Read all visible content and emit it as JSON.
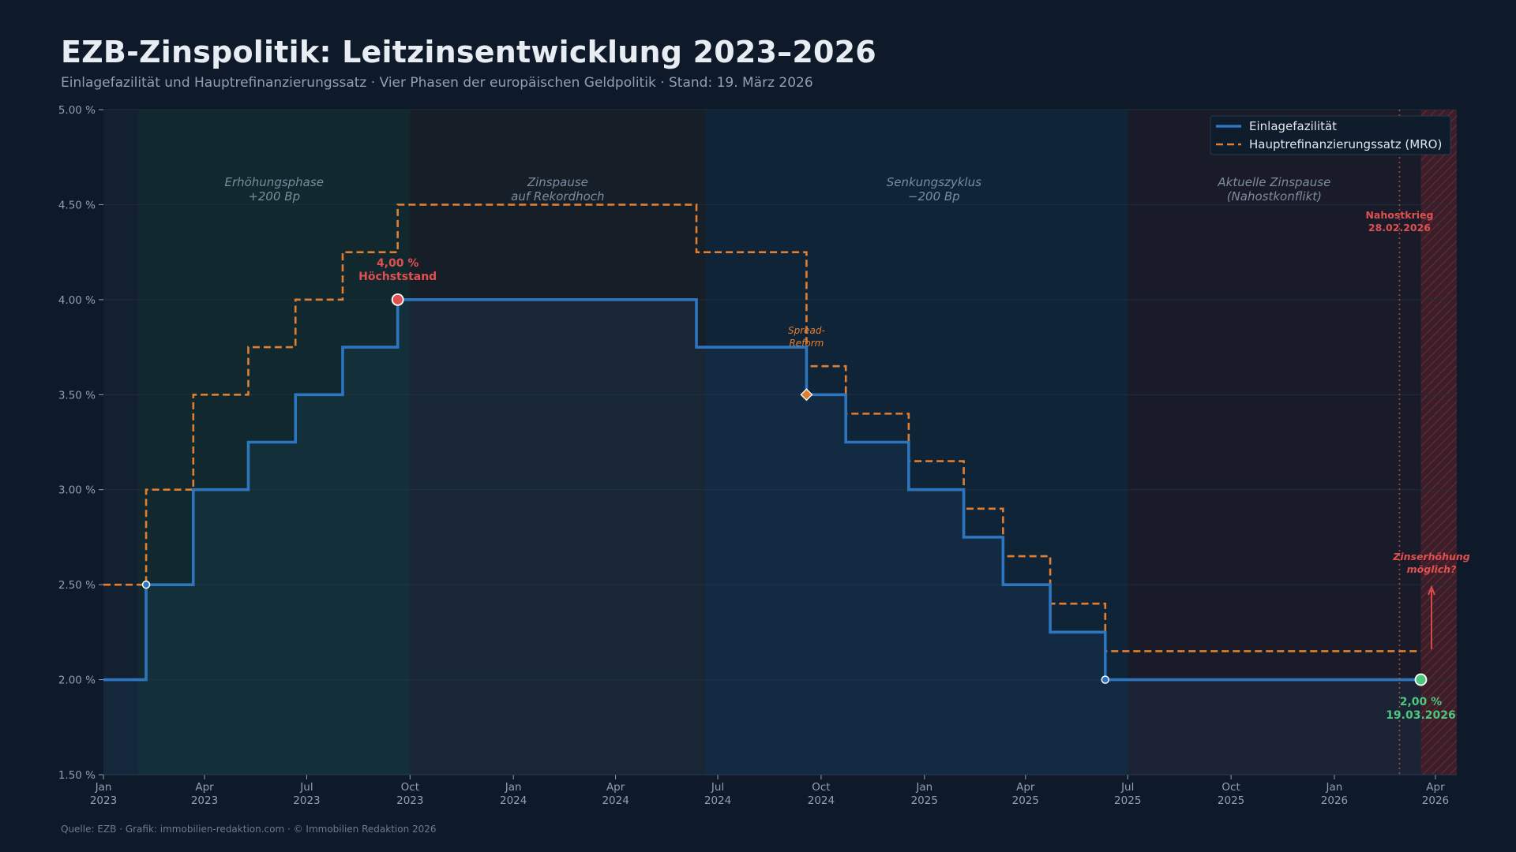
{
  "header": {
    "title": "EZB-Zinspolitik: Leitzinsentwicklung 2023–2026",
    "subtitle": "Einlagefazilität und Hauptrefinanzierungssatz  ·  Vier Phasen der europäischen Geldpolitik  ·  Stand: 19. März 2026"
  },
  "footer": {
    "source": "Quelle: EZB  ·  Grafik: immobilien-redaktion.com  ·  © Immobilien Redaktion 2026"
  },
  "colors": {
    "background": "#0e1a2a",
    "plot_bg": "#13202f",
    "deposit": "#2e75c0",
    "mro": "#e07f33",
    "red": "#e05050",
    "green": "#4cc77e",
    "phase1": "#11292e",
    "phase2": "#161e28",
    "phase3": "#102438",
    "phase4": "#1a1b28"
  },
  "chart_data": {
    "type": "line",
    "step": "post",
    "xlim": [
      "2023-01-01",
      "2026-04-20"
    ],
    "ylim": [
      1.5,
      5.0
    ],
    "y_ticks": [
      {
        "value": 1.5,
        "label": "1.50 %"
      },
      {
        "value": 2.0,
        "label": "2.00 %"
      },
      {
        "value": 2.5,
        "label": "2.50 %"
      },
      {
        "value": 3.0,
        "label": "3.00 %"
      },
      {
        "value": 3.5,
        "label": "3.50 %"
      },
      {
        "value": 4.0,
        "label": "4.00 %"
      },
      {
        "value": 4.5,
        "label": "4.50 %"
      },
      {
        "value": 5.0,
        "label": "5.00 %"
      }
    ],
    "x_ticks": [
      {
        "date": "2023-01-01",
        "month": "Jan",
        "year": "2023"
      },
      {
        "date": "2023-04-01",
        "month": "Apr",
        "year": "2023"
      },
      {
        "date": "2023-07-01",
        "month": "Jul",
        "year": "2023"
      },
      {
        "date": "2023-10-01",
        "month": "Oct",
        "year": "2023"
      },
      {
        "date": "2024-01-01",
        "month": "Jan",
        "year": "2024"
      },
      {
        "date": "2024-04-01",
        "month": "Apr",
        "year": "2024"
      },
      {
        "date": "2024-07-01",
        "month": "Jul",
        "year": "2024"
      },
      {
        "date": "2024-10-01",
        "month": "Oct",
        "year": "2024"
      },
      {
        "date": "2025-01-01",
        "month": "Jan",
        "year": "2025"
      },
      {
        "date": "2025-04-01",
        "month": "Apr",
        "year": "2025"
      },
      {
        "date": "2025-07-01",
        "month": "Jul",
        "year": "2025"
      },
      {
        "date": "2025-10-01",
        "month": "Oct",
        "year": "2025"
      },
      {
        "date": "2026-01-01",
        "month": "Jan",
        "year": "2026"
      },
      {
        "date": "2026-04-01",
        "month": "Apr",
        "year": "2026"
      }
    ],
    "series": [
      {
        "name": "Einlagefazilität",
        "style": "solid",
        "points": [
          {
            "date": "2023-01-01",
            "value": 2.0
          },
          {
            "date": "2023-02-08",
            "value": 2.5
          },
          {
            "date": "2023-03-22",
            "value": 3.0
          },
          {
            "date": "2023-05-10",
            "value": 3.25
          },
          {
            "date": "2023-06-21",
            "value": 3.5
          },
          {
            "date": "2023-08-02",
            "value": 3.75
          },
          {
            "date": "2023-09-20",
            "value": 4.0
          },
          {
            "date": "2024-06-12",
            "value": 3.75
          },
          {
            "date": "2024-09-18",
            "value": 3.5
          },
          {
            "date": "2024-10-23",
            "value": 3.25
          },
          {
            "date": "2024-12-18",
            "value": 3.0
          },
          {
            "date": "2025-02-05",
            "value": 2.75
          },
          {
            "date": "2025-03-12",
            "value": 2.5
          },
          {
            "date": "2025-04-23",
            "value": 2.25
          },
          {
            "date": "2025-06-11",
            "value": 2.0
          },
          {
            "date": "2026-03-19",
            "value": 2.0
          }
        ]
      },
      {
        "name": "Hauptrefinanzierungssatz (MRO)",
        "style": "dashed",
        "points": [
          {
            "date": "2023-01-01",
            "value": 2.5
          },
          {
            "date": "2023-02-08",
            "value": 3.0
          },
          {
            "date": "2023-03-22",
            "value": 3.5
          },
          {
            "date": "2023-05-10",
            "value": 3.75
          },
          {
            "date": "2023-06-21",
            "value": 4.0
          },
          {
            "date": "2023-08-02",
            "value": 4.25
          },
          {
            "date": "2023-09-20",
            "value": 4.5
          },
          {
            "date": "2024-06-12",
            "value": 4.25
          },
          {
            "date": "2024-09-18",
            "value": 3.65
          },
          {
            "date": "2024-10-23",
            "value": 3.4
          },
          {
            "date": "2024-12-18",
            "value": 3.15
          },
          {
            "date": "2025-02-05",
            "value": 2.9
          },
          {
            "date": "2025-03-12",
            "value": 2.65
          },
          {
            "date": "2025-04-23",
            "value": 2.4
          },
          {
            "date": "2025-06-11",
            "value": 2.15
          },
          {
            "date": "2026-03-19",
            "value": 2.15
          }
        ]
      }
    ],
    "phases": [
      {
        "start": "2023-02-01",
        "end": "2023-10-01",
        "lines": [
          "Erhöhungsphase",
          "+200 Bp"
        ],
        "color": "#11292e"
      },
      {
        "start": "2023-10-01",
        "end": "2024-06-20",
        "lines": [
          "Zinspause",
          "auf Rekordhoch"
        ],
        "color": "#161e28"
      },
      {
        "start": "2024-06-20",
        "end": "2025-07-01",
        "lines": [
          "Senkungszyklus",
          "−200 Bp"
        ],
        "color": "#102438"
      },
      {
        "start": "2025-07-01",
        "end": "2026-03-19",
        "lines": [
          "Aktuelle Zinspause",
          "(Nahostkonflikt)"
        ],
        "color": "#1a1b28"
      }
    ],
    "forecast_zone": {
      "start": "2026-03-19",
      "end": "2026-04-20"
    },
    "markers": [
      {
        "date": "2023-02-08",
        "value": 2.5,
        "kind": "small"
      },
      {
        "date": "2023-09-20",
        "value": 4.0,
        "kind": "peak"
      },
      {
        "date": "2024-09-18",
        "value": 3.5,
        "kind": "diamond"
      },
      {
        "date": "2025-06-11",
        "value": 2.0,
        "kind": "small"
      },
      {
        "date": "2026-03-19",
        "value": 2.0,
        "kind": "current"
      }
    ],
    "event_line": {
      "date": "2026-02-28"
    },
    "annotations": {
      "peak": {
        "lines": [
          "4,00 %",
          "Höchststand"
        ]
      },
      "spread": {
        "lines": [
          "Spread-",
          "Reform"
        ]
      },
      "current": {
        "lines": [
          "2,00 %",
          "19.03.2026"
        ]
      },
      "war": {
        "lines": [
          "Nahostkrieg",
          "28.02.2026"
        ]
      },
      "hike": {
        "lines": [
          "Zinserhöhung",
          "möglich?"
        ]
      }
    },
    "legend": {
      "position": "top-right",
      "items": [
        "Einlagefazilität",
        "Hauptrefinanzierungssatz (MRO)"
      ]
    }
  }
}
